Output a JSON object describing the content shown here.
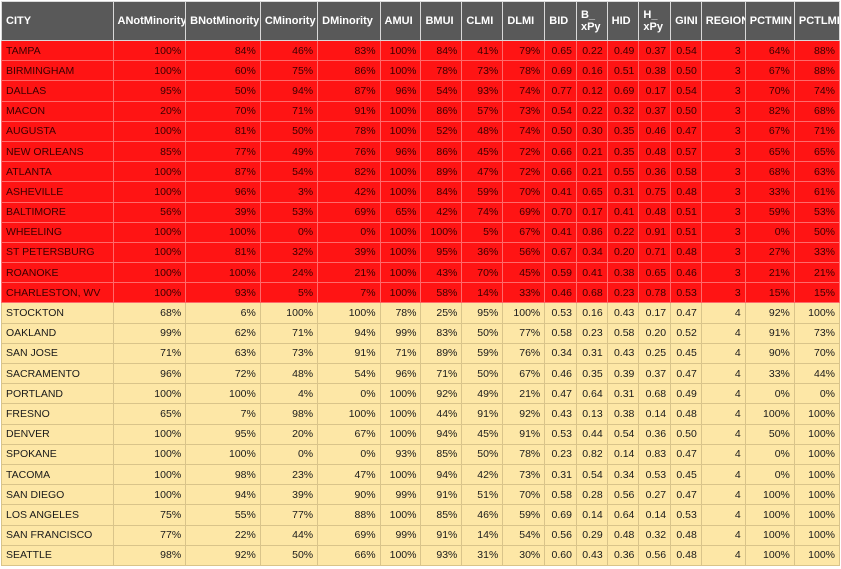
{
  "table": {
    "columns": [
      "CITY",
      "ANotMinority",
      "BNotMinority",
      "CMinority",
      "DMinority",
      "AMUI",
      "BMUI",
      "CLMI",
      "DLMI",
      "BID",
      "B_\nxPy",
      "HID",
      "H_\nxPy",
      "GINI",
      "REGION",
      "PCTMIN",
      "PCTLMI"
    ],
    "rows": [
      [
        "TAMPA",
        "100%",
        "84%",
        "46%",
        "83%",
        "100%",
        "84%",
        "41%",
        "79%",
        "0.65",
        "0.22",
        "0.49",
        "0.37",
        "0.54",
        "3",
        "64%",
        "88%"
      ],
      [
        "BIRMINGHAM",
        "100%",
        "60%",
        "75%",
        "86%",
        "100%",
        "78%",
        "73%",
        "78%",
        "0.69",
        "0.16",
        "0.51",
        "0.38",
        "0.50",
        "3",
        "67%",
        "88%"
      ],
      [
        "DALLAS",
        "95%",
        "50%",
        "94%",
        "87%",
        "96%",
        "54%",
        "93%",
        "74%",
        "0.77",
        "0.12",
        "0.69",
        "0.17",
        "0.54",
        "3",
        "70%",
        "74%"
      ],
      [
        "MACON",
        "20%",
        "70%",
        "71%",
        "91%",
        "100%",
        "86%",
        "57%",
        "73%",
        "0.54",
        "0.22",
        "0.32",
        "0.37",
        "0.50",
        "3",
        "82%",
        "68%"
      ],
      [
        "AUGUSTA",
        "100%",
        "81%",
        "50%",
        "78%",
        "100%",
        "52%",
        "48%",
        "74%",
        "0.50",
        "0.30",
        "0.35",
        "0.46",
        "0.47",
        "3",
        "67%",
        "71%"
      ],
      [
        "NEW ORLEANS",
        "85%",
        "77%",
        "49%",
        "76%",
        "96%",
        "86%",
        "45%",
        "72%",
        "0.66",
        "0.21",
        "0.35",
        "0.48",
        "0.57",
        "3",
        "65%",
        "65%"
      ],
      [
        "ATLANTA",
        "100%",
        "87%",
        "54%",
        "82%",
        "100%",
        "89%",
        "47%",
        "72%",
        "0.66",
        "0.21",
        "0.55",
        "0.36",
        "0.58",
        "3",
        "68%",
        "63%"
      ],
      [
        "ASHEVILLE",
        "100%",
        "96%",
        "3%",
        "42%",
        "100%",
        "84%",
        "59%",
        "70%",
        "0.41",
        "0.65",
        "0.31",
        "0.75",
        "0.48",
        "3",
        "33%",
        "61%"
      ],
      [
        "BALTIMORE",
        "56%",
        "39%",
        "53%",
        "69%",
        "65%",
        "42%",
        "74%",
        "69%",
        "0.70",
        "0.17",
        "0.41",
        "0.48",
        "0.51",
        "3",
        "59%",
        "53%"
      ],
      [
        "WHEELING",
        "100%",
        "100%",
        "0%",
        "0%",
        "100%",
        "100%",
        "5%",
        "67%",
        "0.41",
        "0.86",
        "0.22",
        "0.91",
        "0.51",
        "3",
        "0%",
        "50%"
      ],
      [
        "ST PETERSBURG",
        "100%",
        "81%",
        "32%",
        "39%",
        "100%",
        "95%",
        "36%",
        "56%",
        "0.67",
        "0.34",
        "0.20",
        "0.71",
        "0.48",
        "3",
        "27%",
        "33%"
      ],
      [
        "ROANOKE",
        "100%",
        "100%",
        "24%",
        "21%",
        "100%",
        "43%",
        "70%",
        "45%",
        "0.59",
        "0.41",
        "0.38",
        "0.65",
        "0.46",
        "3",
        "21%",
        "21%"
      ],
      [
        "CHARLESTON, WV",
        "100%",
        "93%",
        "5%",
        "7%",
        "100%",
        "58%",
        "14%",
        "33%",
        "0.46",
        "0.68",
        "0.23",
        "0.78",
        "0.53",
        "3",
        "15%",
        "15%"
      ],
      [
        "STOCKTON",
        "68%",
        "6%",
        "100%",
        "100%",
        "78%",
        "25%",
        "95%",
        "100%",
        "0.53",
        "0.16",
        "0.43",
        "0.17",
        "0.47",
        "4",
        "92%",
        "100%"
      ],
      [
        "OAKLAND",
        "99%",
        "62%",
        "71%",
        "94%",
        "99%",
        "83%",
        "50%",
        "77%",
        "0.58",
        "0.23",
        "0.58",
        "0.20",
        "0.52",
        "4",
        "91%",
        "73%"
      ],
      [
        "SAN JOSE",
        "71%",
        "63%",
        "73%",
        "91%",
        "71%",
        "89%",
        "59%",
        "76%",
        "0.34",
        "0.31",
        "0.43",
        "0.25",
        "0.45",
        "4",
        "90%",
        "70%"
      ],
      [
        "SACRAMENTO",
        "96%",
        "72%",
        "48%",
        "54%",
        "96%",
        "71%",
        "50%",
        "67%",
        "0.46",
        "0.35",
        "0.39",
        "0.37",
        "0.47",
        "4",
        "33%",
        "44%"
      ],
      [
        "PORTLAND",
        "100%",
        "100%",
        "4%",
        "0%",
        "100%",
        "92%",
        "49%",
        "21%",
        "0.47",
        "0.64",
        "0.31",
        "0.68",
        "0.49",
        "4",
        "0%",
        "0%"
      ],
      [
        "FRESNO",
        "65%",
        "7%",
        "98%",
        "100%",
        "100%",
        "44%",
        "91%",
        "92%",
        "0.43",
        "0.13",
        "0.38",
        "0.14",
        "0.48",
        "4",
        "100%",
        "100%"
      ],
      [
        "DENVER",
        "100%",
        "95%",
        "20%",
        "67%",
        "100%",
        "94%",
        "45%",
        "91%",
        "0.53",
        "0.44",
        "0.54",
        "0.36",
        "0.50",
        "4",
        "50%",
        "100%"
      ],
      [
        "SPOKANE",
        "100%",
        "100%",
        "0%",
        "0%",
        "93%",
        "85%",
        "50%",
        "78%",
        "0.23",
        "0.82",
        "0.14",
        "0.83",
        "0.47",
        "4",
        "0%",
        "100%"
      ],
      [
        "TACOMA",
        "100%",
        "98%",
        "23%",
        "47%",
        "100%",
        "94%",
        "42%",
        "73%",
        "0.31",
        "0.54",
        "0.34",
        "0.53",
        "0.45",
        "4",
        "0%",
        "100%"
      ],
      [
        "SAN DIEGO",
        "100%",
        "94%",
        "39%",
        "90%",
        "99%",
        "91%",
        "51%",
        "70%",
        "0.58",
        "0.28",
        "0.56",
        "0.27",
        "0.47",
        "4",
        "100%",
        "100%"
      ],
      [
        "LOS ANGELES",
        "75%",
        "55%",
        "77%",
        "88%",
        "100%",
        "85%",
        "46%",
        "59%",
        "0.69",
        "0.14",
        "0.64",
        "0.14",
        "0.53",
        "4",
        "100%",
        "100%"
      ],
      [
        "SAN FRANCISCO",
        "77%",
        "22%",
        "44%",
        "69%",
        "99%",
        "91%",
        "14%",
        "54%",
        "0.56",
        "0.29",
        "0.48",
        "0.32",
        "0.48",
        "4",
        "100%",
        "100%"
      ],
      [
        "SEATTLE",
        "98%",
        "92%",
        "50%",
        "66%",
        "100%",
        "93%",
        "31%",
        "30%",
        "0.60",
        "0.43",
        "0.36",
        "0.56",
        "0.48",
        "4",
        "100%",
        "100%"
      ]
    ]
  },
  "colors": {
    "header_bg": "#595959",
    "region3_bg": "#ff1414",
    "region4_bg": "#fde7a6"
  }
}
